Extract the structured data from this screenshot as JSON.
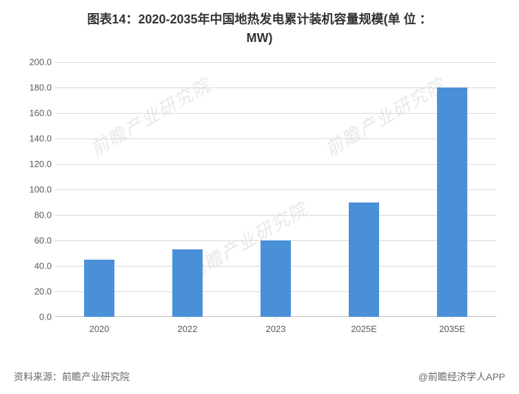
{
  "title": {
    "line1": "图表14：2020-2035年中国地热发电累计装机容量规模(单 位 ：",
    "line2": "MW)",
    "fontsize": 18,
    "color": "#333333"
  },
  "chart": {
    "type": "bar",
    "categories": [
      "2020",
      "2022",
      "2023",
      "2025E",
      "2035E"
    ],
    "values": [
      45,
      53,
      60,
      90,
      180
    ],
    "bar_color": "#4a90d9",
    "ylim": [
      0,
      200
    ],
    "ytick_step": 20,
    "yticks": [
      "0.0",
      "20.0",
      "40.0",
      "60.0",
      "80.0",
      "100.0",
      "120.0",
      "140.0",
      "160.0",
      "180.0",
      "200.0"
    ],
    "background_color": "#ffffff",
    "grid_color": "#d9d9d9",
    "axis_color": "#bfbfbf",
    "label_fontsize": 13,
    "label_color": "#595959",
    "bar_width_ratio": 0.35
  },
  "footer": {
    "source_label": "资料来源：前瞻产业研究院",
    "attribution": "@前瞻经济学人APP",
    "fontsize": 14,
    "color": "#666666"
  },
  "watermark": {
    "text": "前瞻产业研究院",
    "color": "#e8e8e8",
    "fontsize": 26
  }
}
